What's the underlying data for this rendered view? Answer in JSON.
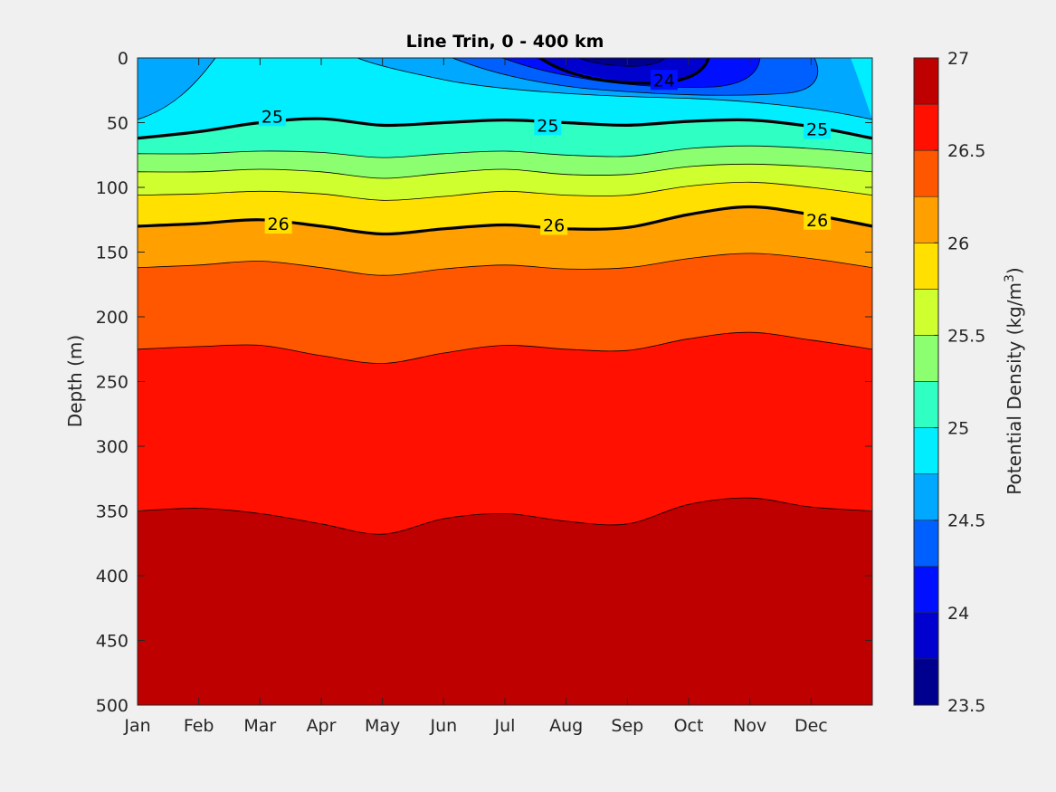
{
  "chart_data": {
    "type": "contourf",
    "title": "Line Trin, 0 - 400 km",
    "ylabel": "Depth (m)",
    "colorbar_label": "Potential Density (kg/m",
    "colorbar_label_sup": "3",
    "colorbar_label_tail": ")",
    "x": {
      "tick_labels": [
        "Jan",
        "Feb",
        "Mar",
        "Apr",
        "May",
        "Jun",
        "Jul",
        "Aug",
        "Sep",
        "Oct",
        "Nov",
        "Dec"
      ],
      "tick_months": [
        0,
        1,
        2,
        3,
        4,
        5,
        6,
        7,
        8,
        9,
        10,
        11
      ],
      "range_months": [
        0,
        12
      ]
    },
    "y": {
      "reversed": true,
      "ylim": [
        0,
        500
      ],
      "ticks": [
        0,
        50,
        100,
        150,
        200,
        250,
        300,
        350,
        400,
        450,
        500
      ],
      "tick_labels": [
        "0",
        "50",
        "100",
        "150",
        "200",
        "250",
        "300",
        "350",
        "400",
        "450",
        "500"
      ]
    },
    "colorbar": {
      "clim": [
        23.5,
        27
      ],
      "ticks": [
        23.5,
        24,
        24.5,
        25,
        25.5,
        26,
        26.5,
        27
      ],
      "tick_labels": [
        "23.5",
        "24",
        "24.5",
        "25",
        "25.5",
        "26",
        "26.5",
        "27"
      ],
      "bands": [
        {
          "range": [
            23.5,
            23.75
          ],
          "color": "#00008f"
        },
        {
          "range": [
            23.75,
            24.0
          ],
          "color": "#0000cf"
        },
        {
          "range": [
            24.0,
            24.25
          ],
          "color": "#0010ff"
        },
        {
          "range": [
            24.25,
            24.5
          ],
          "color": "#0060ff"
        },
        {
          "range": [
            24.5,
            24.75
          ],
          "color": "#00a8ff"
        },
        {
          "range": [
            24.75,
            25.0
          ],
          "color": "#00eeff"
        },
        {
          "range": [
            25.0,
            25.25
          ],
          "color": "#30ffc4"
        },
        {
          "range": [
            25.25,
            25.5
          ],
          "color": "#8cff70"
        },
        {
          "range": [
            25.5,
            25.75
          ],
          "color": "#d0ff30"
        },
        {
          "range": [
            25.75,
            26.0
          ],
          "color": "#ffe000"
        },
        {
          "range": [
            26.0,
            26.25
          ],
          "color": "#ffa000"
        },
        {
          "range": [
            26.25,
            26.5
          ],
          "color": "#ff5600"
        },
        {
          "range": [
            26.5,
            26.75
          ],
          "color": "#ff1000"
        },
        {
          "range": [
            26.75,
            27.0
          ],
          "color": "#bf0000"
        }
      ]
    },
    "isopycnal_depths_m": {
      "months": [
        0,
        1,
        2,
        3,
        4,
        5,
        6,
        7,
        8,
        9,
        10,
        11,
        11.9
      ],
      "levels": [
        {
          "level": 25.0,
          "depths": [
            62,
            57,
            50,
            47,
            52,
            50,
            48,
            50,
            52,
            49,
            48,
            53,
            62
          ]
        },
        {
          "level": 25.25,
          "depths": [
            74,
            74,
            72,
            73,
            77,
            74,
            72,
            75,
            76,
            70,
            68,
            70,
            74
          ]
        },
        {
          "level": 25.5,
          "depths": [
            88,
            88,
            86,
            88,
            93,
            89,
            86,
            90,
            90,
            84,
            82,
            84,
            88
          ]
        },
        {
          "level": 25.75,
          "depths": [
            106,
            105,
            103,
            105,
            110,
            107,
            103,
            106,
            106,
            99,
            96,
            100,
            106
          ]
        },
        {
          "level": 26.0,
          "depths": [
            130,
            128,
            125,
            130,
            136,
            132,
            129,
            132,
            131,
            121,
            115,
            121,
            130
          ]
        },
        {
          "level": 26.25,
          "depths": [
            162,
            160,
            157,
            162,
            168,
            163,
            160,
            163,
            162,
            155,
            151,
            155,
            162
          ]
        },
        {
          "level": 26.5,
          "depths": [
            225,
            223,
            222,
            230,
            236,
            228,
            222,
            225,
            226,
            217,
            212,
            218,
            225
          ]
        },
        {
          "level": 26.75,
          "depths": [
            350,
            348,
            352,
            360,
            368,
            356,
            352,
            358,
            360,
            345,
            340,
            347,
            350
          ]
        }
      ]
    },
    "contour_labels": [
      {
        "text": "25",
        "month": 2.2,
        "depth": 45
      },
      {
        "text": "25",
        "month": 6.7,
        "depth": 52
      },
      {
        "text": "25",
        "month": 11.1,
        "depth": 55
      },
      {
        "text": "26",
        "month": 2.3,
        "depth": 128
      },
      {
        "text": "26",
        "month": 6.8,
        "depth": 129
      },
      {
        "text": "26",
        "month": 11.1,
        "depth": 125
      },
      {
        "text": "24",
        "month": 8.6,
        "depth": 17
      }
    ]
  }
}
